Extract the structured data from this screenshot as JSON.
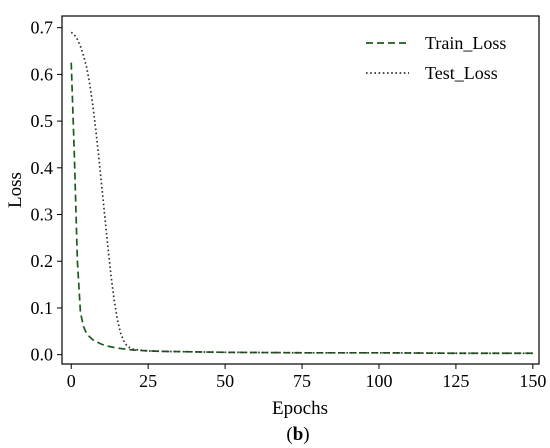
{
  "chart_data": {
    "type": "line",
    "title": "",
    "xlabel": "Epochs",
    "ylabel": "Loss",
    "xlim": [
      -3,
      152
    ],
    "ylim": [
      -0.02,
      0.725
    ],
    "xticks": [
      0,
      25,
      50,
      75,
      100,
      125,
      150
    ],
    "yticks": [
      0.0,
      0.1,
      0.2,
      0.3,
      0.4,
      0.5,
      0.6,
      0.7
    ],
    "xtick_labels": [
      "0",
      "25",
      "50",
      "75",
      "100",
      "125",
      "150"
    ],
    "ytick_labels": [
      "0.0",
      "0.1",
      "0.2",
      "0.3",
      "0.4",
      "0.5",
      "0.6",
      "0.7"
    ],
    "grid": false,
    "legend_position": "top-right",
    "caption": {
      "open": "(",
      "letter": "b",
      "close": ")"
    },
    "series": [
      {
        "name": "Train_Loss",
        "color": "#1a5c1a",
        "style": "dashed",
        "x": [
          0,
          1,
          2,
          3,
          4,
          5,
          6,
          7,
          8,
          10,
          12,
          15,
          20,
          25,
          30,
          40,
          50,
          75,
          100,
          125,
          150
        ],
        "y": [
          0.625,
          0.43,
          0.2,
          0.09,
          0.06,
          0.045,
          0.038,
          0.032,
          0.028,
          0.022,
          0.018,
          0.014,
          0.01,
          0.008,
          0.007,
          0.006,
          0.005,
          0.004,
          0.004,
          0.003,
          0.003
        ]
      },
      {
        "name": "Test_Loss",
        "color": "#333333",
        "style": "dotted",
        "x": [
          0,
          1,
          2,
          3,
          4,
          5,
          6,
          7,
          8,
          9,
          10,
          11,
          12,
          13,
          14,
          15,
          16,
          17,
          18,
          19,
          20,
          22,
          25,
          30,
          40,
          50,
          75,
          100,
          125,
          150
        ],
        "y": [
          0.69,
          0.685,
          0.675,
          0.66,
          0.64,
          0.615,
          0.58,
          0.535,
          0.48,
          0.42,
          0.355,
          0.29,
          0.225,
          0.165,
          0.115,
          0.075,
          0.047,
          0.03,
          0.02,
          0.015,
          0.012,
          0.01,
          0.008,
          0.007,
          0.006,
          0.005,
          0.004,
          0.004,
          0.003,
          0.003
        ]
      }
    ]
  }
}
